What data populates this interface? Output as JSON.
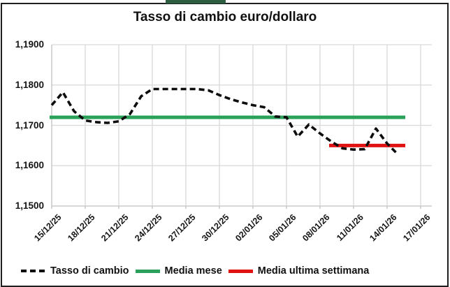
{
  "window": {
    "top_accent_bar_color": "#2E5E41",
    "frame_border_color": "#1F1F1F",
    "background_color": "#FFFFFF"
  },
  "chart_data": {
    "type": "line",
    "title": "Tasso di cambio euro/dollaro",
    "xlabel": "",
    "ylabel": "",
    "grid": true,
    "gridline_color": "#D9D9D9",
    "axis_color": "#BFBFBF",
    "ylim": [
      1.15,
      1.19
    ],
    "y_ticks": [
      1.19,
      1.18,
      1.17,
      1.16,
      1.15
    ],
    "y_tick_labels": [
      "1,1900",
      "1,1800",
      "1,1700",
      "1,1600",
      "1,1500"
    ],
    "x_tick_labels": [
      "15/12/25",
      "18/12/25",
      "21/12/25",
      "24/12/25",
      "27/12/25",
      "30/12/25",
      "02/01/26",
      "05/01/26",
      "08/01/26",
      "11/01/26",
      "14/01/26",
      "17/01/26"
    ],
    "x_tick_every_days": 3,
    "x_axis_total_days": 34,
    "series": [
      {
        "name": "Tasso di cambio",
        "style": "dashed",
        "color": "#0D0D0D",
        "start_day": 0,
        "dates": [
          "15/12/25",
          "16/12/25",
          "17/12/25",
          "18/12/25",
          "19/12/25",
          "20/12/25",
          "21/12/25",
          "22/12/25",
          "23/12/25",
          "24/12/25",
          "25/12/25",
          "26/12/25",
          "27/12/25",
          "28/12/25",
          "29/12/25",
          "30/12/25",
          "31/12/25",
          "01/01/26",
          "02/01/26",
          "03/01/26",
          "04/01/26",
          "05/01/26",
          "06/01/26",
          "07/01/26",
          "08/01/26",
          "09/01/26",
          "10/01/26",
          "11/01/26",
          "12/01/26",
          "13/01/26",
          "14/01/26",
          "15/01/26"
        ],
        "values": [
          1.175,
          1.1782,
          1.1735,
          1.1712,
          1.1708,
          1.1706,
          1.171,
          1.1728,
          1.1772,
          1.179,
          1.179,
          1.179,
          1.179,
          1.179,
          1.1787,
          1.1775,
          1.1765,
          1.1757,
          1.175,
          1.1745,
          1.1722,
          1.172,
          1.1672,
          1.1702,
          1.168,
          1.166,
          1.1643,
          1.164,
          1.1641,
          1.1692,
          1.1655,
          1.1627
        ]
      },
      {
        "name": "Media mese",
        "style": "solid",
        "color": "#2BA05A",
        "value": 1.172,
        "span_days": [
          0,
          31
        ]
      },
      {
        "name": "Media ultima settimana",
        "style": "solid",
        "color": "#E01212",
        "value": 1.165,
        "span_days": [
          25,
          31
        ]
      }
    ],
    "legend": [
      {
        "label": "Tasso di cambio",
        "style": "dashed",
        "color": "#0D0D0D"
      },
      {
        "label": "Media mese",
        "style": "solid",
        "color": "#2BA05A"
      },
      {
        "label": "Media ultima settimana",
        "style": "solid",
        "color": "#E01212"
      }
    ],
    "legend_position": "bottom"
  }
}
